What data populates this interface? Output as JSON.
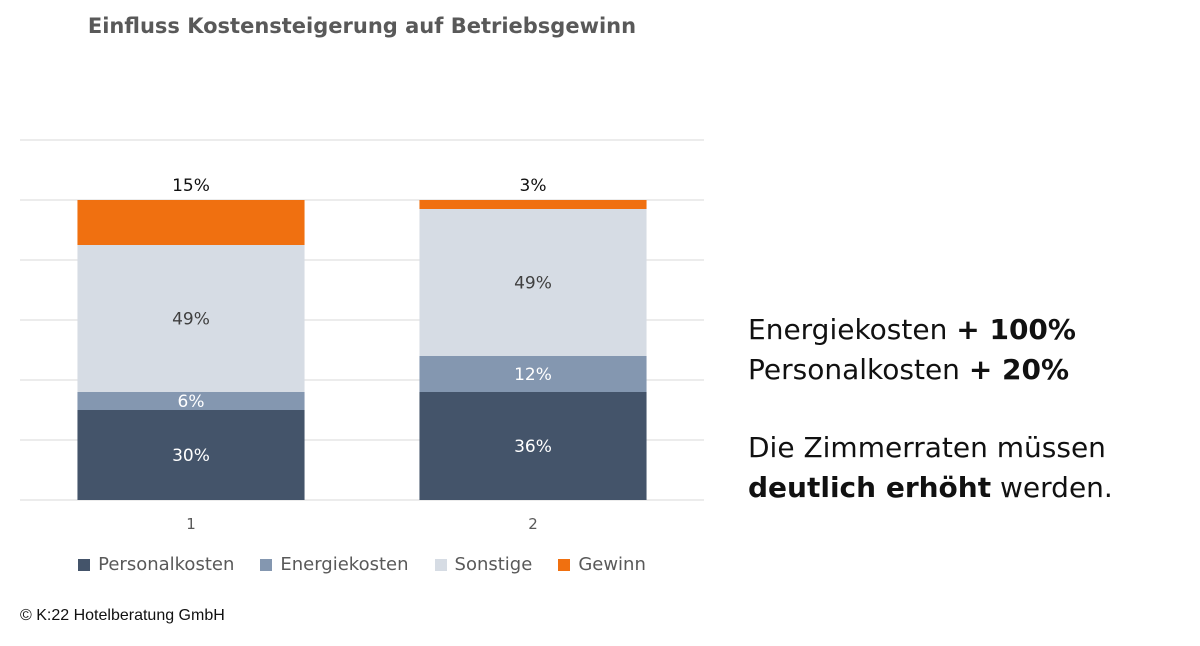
{
  "chart_data": {
    "type": "bar",
    "stacked": true,
    "title": "Einfluss Kostensteigerung auf Betriebsgewinn",
    "categories": [
      "1",
      "2"
    ],
    "series": [
      {
        "name": "Personalkosten",
        "color": "#44546a",
        "values": [
          30,
          36
        ],
        "labels": [
          "30%",
          "36%"
        ],
        "label_color": "#ffffff"
      },
      {
        "name": "Energiekosten",
        "color": "#8497b0",
        "values": [
          6,
          12
        ],
        "labels": [
          "6%",
          "12%"
        ],
        "label_color": "#ffffff"
      },
      {
        "name": "Sonstige",
        "color": "#d6dce4",
        "values": [
          49,
          49
        ],
        "labels": [
          "49%",
          "49%"
        ],
        "label_color": "#404040"
      },
      {
        "name": "Gewinn",
        "color": "#f07010",
        "values": [
          15,
          3
        ],
        "labels": [
          "15%",
          "3%"
        ],
        "label_color": "#111111"
      }
    ],
    "ylim": [
      0,
      120
    ],
    "grid": true,
    "legend": "bottom"
  },
  "side_text": {
    "line1_text": "Energiekosten ",
    "line1_bold": "+ 100%",
    "line2_text": "Personalkosten ",
    "line2_bold": "+ 20%",
    "line3_text": "Die Zimmerraten müssen",
    "line4_bold": "deutlich erhöht",
    "line4_text": " werden."
  },
  "copyright": "©  K:22 Hotelberatung GmbH"
}
